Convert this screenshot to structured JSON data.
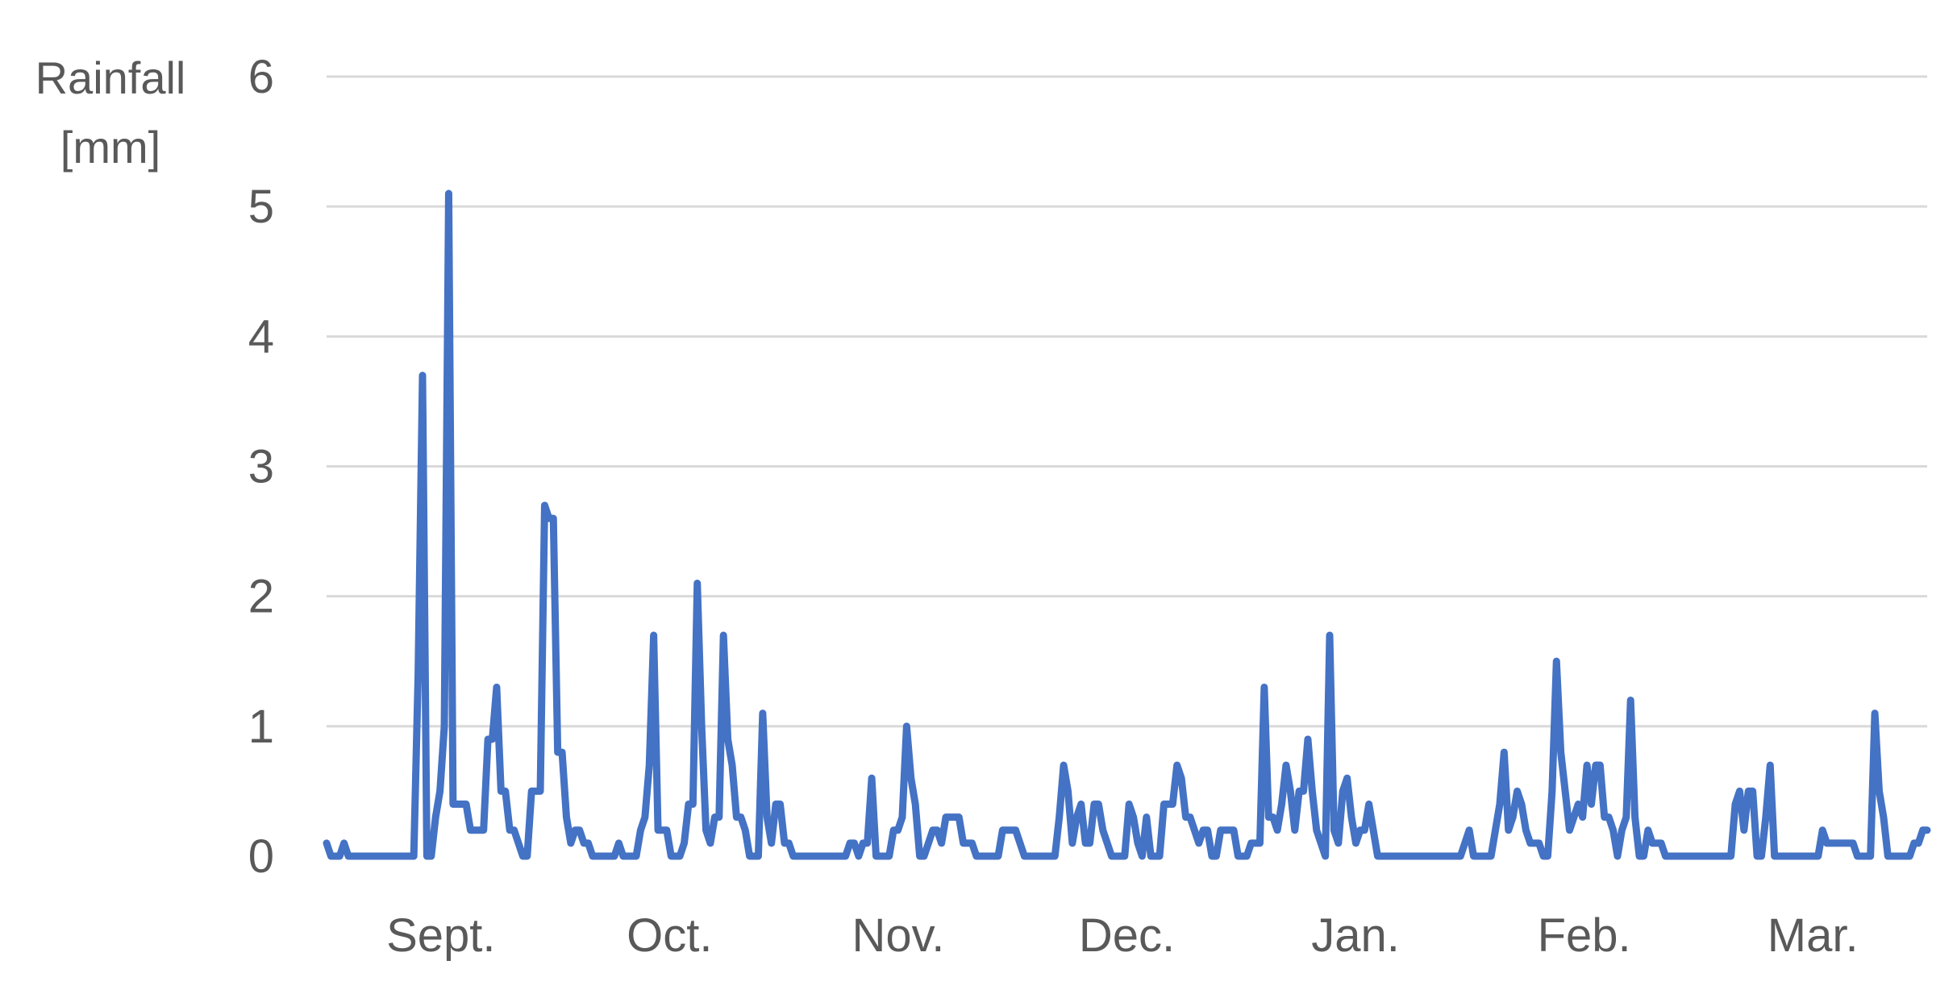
{
  "chart_data": {
    "type": "line",
    "title": "",
    "xlabel": "",
    "ylabel_lines": [
      "Rainfall",
      "[mm]"
    ],
    "ylim": [
      0,
      6
    ],
    "yticks": [
      0,
      1,
      2,
      3,
      4,
      5,
      6
    ],
    "grid": true,
    "legend": "none",
    "series_color": "#4472C4",
    "grid_color": "#D9D9D9",
    "months": [
      "Sept.",
      "Oct.",
      "Nov.",
      "Dec.",
      "Jan.",
      "Feb.",
      "Mar."
    ],
    "series": [
      {
        "values": [
          0.1,
          0,
          0,
          0,
          0.1,
          0,
          0,
          0,
          0,
          0,
          0,
          0,
          0,
          0,
          0,
          0,
          0,
          0,
          0,
          0,
          0,
          1.4,
          3.7,
          0,
          0,
          0.3,
          0.5,
          1.0,
          5.1,
          0.4,
          0.4,
          0.4,
          0.4,
          0.2,
          0.2,
          0.2,
          0.2,
          0.9,
          0.9,
          1.3,
          0.5,
          0.5,
          0.2,
          0.2,
          0.1,
          0,
          0,
          0.5,
          0.5,
          0.5,
          2.7,
          2.6,
          2.6,
          0.8,
          0.8,
          0.3,
          0.1,
          0.2,
          0.2,
          0.1,
          0.1,
          0,
          0,
          0,
          0,
          0,
          0,
          0.1,
          0,
          0,
          0,
          0,
          0.2,
          0.3,
          0.7,
          1.7,
          0.2,
          0.2,
          0.2,
          0,
          0,
          0,
          0.1,
          0.4,
          0.4,
          2.1,
          1.0,
          0.2,
          0.1,
          0.3,
          0.3,
          1.7,
          0.9,
          0.7,
          0.3,
          0.3,
          0.2,
          0,
          0,
          0,
          1.1,
          0.3,
          0.1,
          0.4,
          0.4,
          0.1,
          0.1,
          0,
          0,
          0,
          0,
          0,
          0,
          0,
          0,
          0,
          0,
          0,
          0,
          0,
          0.1,
          0.1,
          0,
          0.1,
          0.1,
          0.6,
          0,
          0,
          0,
          0,
          0.2,
          0.2,
          0.3,
          1.0,
          0.6,
          0.4,
          0,
          0,
          0.1,
          0.2,
          0.2,
          0.1,
          0.3,
          0.3,
          0.3,
          0.3,
          0.1,
          0.1,
          0.1,
          0,
          0,
          0,
          0,
          0,
          0,
          0.2,
          0.2,
          0.2,
          0.2,
          0.1,
          0,
          0,
          0,
          0,
          0,
          0,
          0,
          0,
          0.3,
          0.7,
          0.5,
          0.1,
          0.3,
          0.4,
          0.1,
          0.1,
          0.4,
          0.4,
          0.2,
          0.1,
          0,
          0,
          0,
          0,
          0.4,
          0.3,
          0.1,
          0,
          0.3,
          0,
          0,
          0,
          0.4,
          0.4,
          0.4,
          0.7,
          0.6,
          0.3,
          0.3,
          0.2,
          0.1,
          0.2,
          0.2,
          0,
          0,
          0.2,
          0.2,
          0.2,
          0.2,
          0,
          0,
          0,
          0.1,
          0.1,
          0.1,
          1.3,
          0.3,
          0.3,
          0.2,
          0.4,
          0.7,
          0.5,
          0.2,
          0.5,
          0.5,
          0.9,
          0.5,
          0.2,
          0.1,
          0,
          1.7,
          0.2,
          0.1,
          0.5,
          0.6,
          0.3,
          0.1,
          0.2,
          0.2,
          0.4,
          0.2,
          0,
          0,
          0,
          0,
          0,
          0,
          0,
          0,
          0,
          0,
          0,
          0,
          0,
          0,
          0,
          0,
          0,
          0,
          0,
          0,
          0.1,
          0.2,
          0,
          0,
          0,
          0,
          0,
          0.2,
          0.4,
          0.8,
          0.2,
          0.3,
          0.5,
          0.4,
          0.2,
          0.1,
          0.1,
          0.1,
          0,
          0,
          0.5,
          1.5,
          0.8,
          0.5,
          0.2,
          0.3,
          0.4,
          0.3,
          0.7,
          0.4,
          0.7,
          0.7,
          0.3,
          0.3,
          0.2,
          0,
          0.2,
          0.3,
          1.2,
          0.3,
          0,
          0,
          0.2,
          0.1,
          0.1,
          0.1,
          0,
          0,
          0,
          0,
          0,
          0,
          0,
          0,
          0,
          0,
          0,
          0,
          0,
          0,
          0,
          0,
          0.4,
          0.5,
          0.2,
          0.5,
          0.5,
          0,
          0,
          0.3,
          0.7,
          0,
          0,
          0,
          0,
          0,
          0,
          0,
          0,
          0,
          0,
          0,
          0.2,
          0.1,
          0.1,
          0.1,
          0.1,
          0.1,
          0.1,
          0.1,
          0,
          0,
          0,
          0,
          1.1,
          0.5,
          0.3,
          0,
          0,
          0,
          0,
          0,
          0,
          0.1,
          0.1,
          0.2,
          0.2
        ]
      }
    ]
  }
}
